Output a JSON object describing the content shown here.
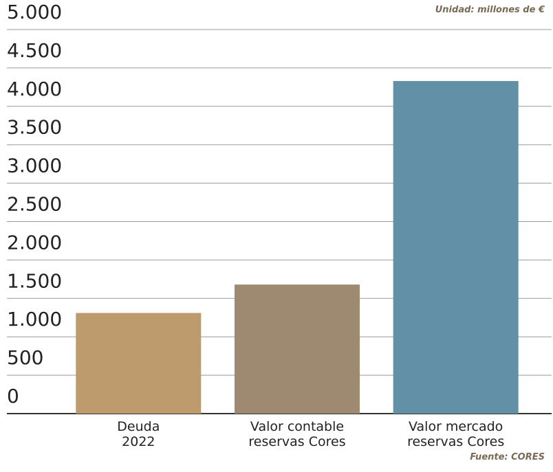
{
  "chart_data": {
    "type": "bar",
    "subtitle": "Unidad: millones de €",
    "source": "Fuente: CORES",
    "categories": [
      "Deuda\n2022",
      "Valor contable\nreservas Cores",
      "Valor mercado\nreservas Cores"
    ],
    "values": [
      1310,
      1680,
      4330
    ],
    "colors": [
      "#bd9b6c",
      "#9e8a70",
      "#6290a6"
    ],
    "ylim": [
      0,
      5000
    ],
    "yticks": [
      0,
      500,
      {
        "value": 1000,
        "label": "1.000"
      },
      {
        "value": 1500,
        "label": "1.500"
      },
      {
        "value": 2000,
        "label": "2.000"
      },
      {
        "value": 2500,
        "label": "2.500"
      },
      {
        "value": 3000,
        "label": "3.000"
      },
      {
        "value": 3500,
        "label": "3.500"
      },
      {
        "value": 4000,
        "label": "4.000"
      },
      {
        "value": 4500,
        "label": "4.500"
      },
      {
        "value": 5000,
        "label": "5.000"
      }
    ],
    "grid": true
  }
}
